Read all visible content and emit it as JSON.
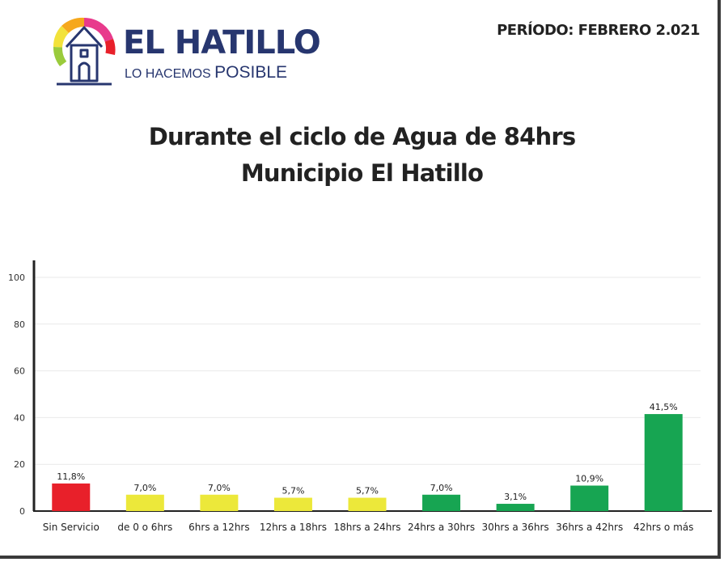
{
  "header": {
    "brand_name": "EL HATILLO",
    "tagline_part1": "LO HACEMOS",
    "tagline_part2": "POSIBLE",
    "period": "PERÍODO: FEBRERO 2.021",
    "logo_icon": "church-tower-icon"
  },
  "colors": {
    "brand_blue": "#27366f",
    "red": "#e8202a",
    "yellow": "#ece83a",
    "green": "#17a552"
  },
  "chart_data": {
    "type": "bar",
    "title_line1": "Durante el ciclo de Agua de 84hrs",
    "title_line2": "Municipio El Hatillo",
    "xlabel": "",
    "ylabel": "",
    "ylim": [
      0,
      100
    ],
    "yticks": [
      "0",
      "20",
      "40",
      "60",
      "80",
      "100"
    ],
    "grid": true,
    "legend": "none",
    "categories": [
      "Sin Servicio",
      "de 0 o 6hrs",
      "6hrs a 12hrs",
      "12hrs a 18hrs",
      "18hrs a 24hrs",
      "24hrs a 30hrs",
      "30hrs a 36hrs",
      "36hrs a 42hrs",
      "42hrs o más"
    ],
    "values": [
      11.8,
      7.0,
      7.0,
      5.7,
      5.7,
      7.0,
      3.1,
      10.9,
      41.5
    ],
    "labels": [
      "11,8%",
      "7,0%",
      "7,0%",
      "5,7%",
      "5,7%",
      "7,0%",
      "3,1%",
      "10,9%",
      "41,5%"
    ],
    "bar_colors": [
      "#e8202a",
      "#ece83a",
      "#ece83a",
      "#ece83a",
      "#ece83a",
      "#17a552",
      "#17a552",
      "#17a552",
      "#17a552"
    ]
  }
}
